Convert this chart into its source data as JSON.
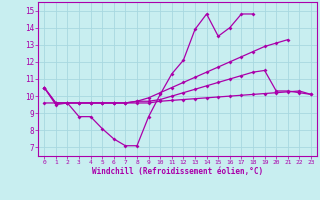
{
  "xlabel": "Windchill (Refroidissement éolien,°C)",
  "background_color": "#c8eef0",
  "grid_color": "#a8d8e0",
  "line_color": "#aa00aa",
  "x_hours": [
    0,
    1,
    2,
    3,
    4,
    5,
    6,
    7,
    8,
    9,
    10,
    11,
    12,
    13,
    14,
    15,
    16,
    17,
    18,
    19,
    20,
    21,
    22,
    23
  ],
  "ylim": [
    6.5,
    15.5
  ],
  "xlim": [
    -0.5,
    23.5
  ],
  "yticks": [
    7,
    8,
    9,
    10,
    11,
    12,
    13,
    14,
    15
  ],
  "series1": [
    10.5,
    9.5,
    9.6,
    8.8,
    8.8,
    8.1,
    7.5,
    7.1,
    7.1,
    8.8,
    10.1,
    11.3,
    12.1,
    13.9,
    14.8,
    13.5,
    14.0,
    14.8,
    14.8,
    null,
    null,
    null,
    null,
    null
  ],
  "series2": [
    10.5,
    9.6,
    9.6,
    9.6,
    9.6,
    9.6,
    9.6,
    9.6,
    9.7,
    9.9,
    10.2,
    10.5,
    10.8,
    11.1,
    11.4,
    11.7,
    12.0,
    12.3,
    12.6,
    12.9,
    13.1,
    13.3,
    null,
    null
  ],
  "series3": [
    10.5,
    9.6,
    9.6,
    9.6,
    9.6,
    9.6,
    9.6,
    9.6,
    9.7,
    9.7,
    9.8,
    10.0,
    10.2,
    10.4,
    10.6,
    10.8,
    11.0,
    11.2,
    11.4,
    11.5,
    10.3,
    10.3,
    10.2,
    10.1
  ],
  "series4": [
    9.6,
    9.6,
    9.6,
    9.6,
    9.6,
    9.6,
    9.6,
    9.6,
    9.6,
    9.6,
    9.7,
    9.75,
    9.8,
    9.85,
    9.9,
    9.95,
    10.0,
    10.05,
    10.1,
    10.15,
    10.2,
    10.25,
    10.3,
    10.1
  ]
}
